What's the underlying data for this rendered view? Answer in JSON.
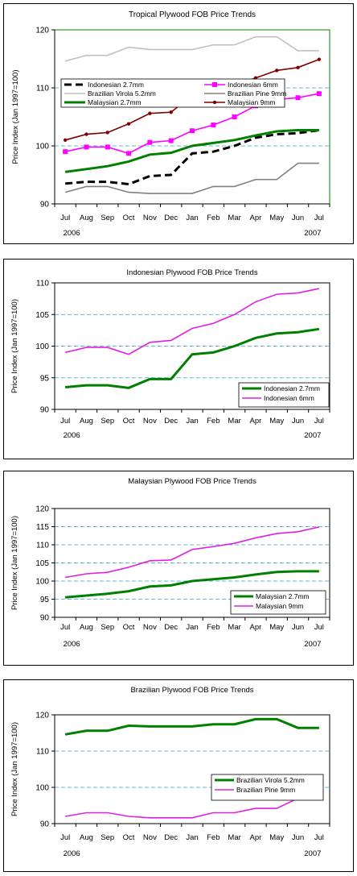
{
  "chart_data": [
    {
      "type": "line",
      "title": "Tropical Plywood FOB Price Trends",
      "xlabel": "",
      "ylabel": "Price Index (Jan 1997=100)",
      "categories": [
        "Jul",
        "Aug",
        "Sep",
        "Oct",
        "Nov",
        "Dec",
        "Jan",
        "Feb",
        "Mar",
        "Apr",
        "May",
        "Jun",
        "Jul"
      ],
      "year_labels": [
        "2006",
        "2007"
      ],
      "ylim": [
        90,
        120
      ],
      "yticks": [
        "90",
        "100",
        "110",
        "120"
      ],
      "grid": "dashed-horizontal",
      "plot_area_color": "#ffffff",
      "legend_position": "top",
      "series": [
        {
          "name": "Indonesian 2.7mm",
          "color": "#000000",
          "style": "dashed",
          "marker": "none",
          "values": [
            93.5,
            93.8,
            93.8,
            93.4,
            94.8,
            95.0,
            98.7,
            99.0,
            100.0,
            101.4,
            102.0,
            102.2,
            102.7
          ]
        },
        {
          "name": "Indonesian 6mm",
          "color": "#ff00ff",
          "style": "solid",
          "marker": "square",
          "values": [
            99.0,
            99.8,
            99.8,
            98.7,
            100.6,
            100.9,
            102.6,
            103.6,
            105.0,
            106.9,
            108.0,
            108.3,
            109.0
          ]
        },
        {
          "name": "Brazilian Virola 5.2mm",
          "color": "#c0c0c0",
          "style": "solid",
          "marker": "none",
          "values": [
            114.6,
            115.6,
            115.6,
            117.0,
            116.6,
            116.6,
            116.6,
            117.4,
            117.4,
            118.8,
            118.8,
            116.4,
            116.4
          ]
        },
        {
          "name": "Brazilian Pine 9mm",
          "color": "#808080",
          "style": "solid",
          "marker": "none",
          "values": [
            92.0,
            93.0,
            93.0,
            92.0,
            91.8,
            91.8,
            91.8,
            93.0,
            93.0,
            94.2,
            94.2,
            97.0,
            97.0
          ]
        },
        {
          "name": "Malaysian 2.7mm",
          "color": "#008000",
          "style": "solid",
          "marker": "none",
          "values": [
            95.5,
            96.0,
            96.5,
            97.3,
            98.5,
            98.8,
            100.0,
            100.5,
            101.0,
            101.8,
            102.5,
            102.7,
            102.7
          ]
        },
        {
          "name": "Malaysian 9mm",
          "color": "#800000",
          "style": "solid",
          "marker": "dot",
          "values": [
            101.0,
            102.0,
            102.3,
            103.8,
            105.6,
            105.8,
            108.7,
            109.5,
            110.4,
            111.7,
            113.0,
            113.5,
            114.9
          ]
        }
      ]
    },
    {
      "type": "line",
      "title": "Indonesian Plywood FOB Price Trends",
      "xlabel": "",
      "ylabel": "Price Index (Jan 1997=100)",
      "categories": [
        "Jul",
        "Aug",
        "Sep",
        "Oct",
        "Nov",
        "Dec",
        "Jan",
        "Feb",
        "Mar",
        "Apr",
        "May",
        "Jun",
        "Jul"
      ],
      "year_labels": [
        "2006",
        "2007"
      ],
      "ylim": [
        90,
        110
      ],
      "yticks": [
        "90",
        "95",
        "100",
        "105",
        "110"
      ],
      "grid": "dashed-horizontal",
      "plot_area_color": "#ffffff",
      "legend_position": "bottom-right",
      "series": [
        {
          "name": "Indonesian 2.7mm",
          "color": "#008000",
          "style": "solid",
          "marker": "none",
          "values": [
            93.5,
            93.8,
            93.8,
            93.4,
            94.8,
            94.8,
            98.7,
            99.0,
            100.0,
            101.3,
            102.0,
            102.2,
            102.7
          ]
        },
        {
          "name": "Indonesian 6mm",
          "color": "#e020e0",
          "style": "solid",
          "marker": "none",
          "values": [
            99.0,
            99.8,
            99.8,
            98.7,
            100.6,
            100.9,
            102.8,
            103.6,
            105.0,
            107.0,
            108.2,
            108.4,
            109.1
          ]
        }
      ]
    },
    {
      "type": "line",
      "title": "Malaysian Plywood FOB Price Trends",
      "xlabel": "",
      "ylabel": "Price Index (Jan 1997=100)",
      "categories": [
        "Jul",
        "Aug",
        "Sep",
        "Oct",
        "Nov",
        "Dec",
        "Jan",
        "Feb",
        "Mar",
        "Apr",
        "May",
        "Jun",
        "Jul"
      ],
      "year_labels": [
        "2006",
        "2007"
      ],
      "ylim": [
        90,
        120
      ],
      "yticks": [
        "90",
        "95",
        "100",
        "105",
        "110",
        "115",
        "120"
      ],
      "grid": "dashed-horizontal",
      "plot_area_color": "#ffffff",
      "legend_position": "bottom-right",
      "series": [
        {
          "name": "Malaysian 2.7mm",
          "color": "#008000",
          "style": "solid",
          "marker": "none",
          "values": [
            95.5,
            96.0,
            96.5,
            97.2,
            98.5,
            98.8,
            100.0,
            100.5,
            101.0,
            101.8,
            102.5,
            102.7,
            102.7
          ]
        },
        {
          "name": "Malaysian 9mm",
          "color": "#e020e0",
          "style": "solid",
          "marker": "none",
          "values": [
            101.0,
            102.0,
            102.4,
            103.8,
            105.6,
            105.8,
            108.7,
            109.5,
            110.4,
            111.9,
            113.1,
            113.6,
            114.9
          ]
        }
      ]
    },
    {
      "type": "line",
      "title": "Brazilian Plywood FOB Price Trends",
      "xlabel": "",
      "ylabel": "Price Index (Jan 1997=100)",
      "categories": [
        "Jul",
        "Aug",
        "Sep",
        "Oct",
        "Nov",
        "Dec",
        "Jan",
        "Feb",
        "Mar",
        "Apr",
        "May",
        "Jun",
        "Jul"
      ],
      "year_labels": [
        "2006",
        "2007"
      ],
      "ylim": [
        90,
        120
      ],
      "yticks": [
        "90",
        "100",
        "110",
        "120"
      ],
      "grid": "dashed-horizontal",
      "plot_area_color": "#ffffff",
      "legend_position": "bottom-right",
      "series": [
        {
          "name": "Brazilian Virola 5.2mm",
          "color": "#008000",
          "style": "solid",
          "marker": "none",
          "values": [
            114.6,
            115.6,
            115.6,
            117.0,
            116.8,
            116.8,
            116.8,
            117.4,
            117.4,
            118.8,
            118.8,
            116.4,
            116.4
          ]
        },
        {
          "name": "Brazilian Pine 9mm",
          "color": "#e020e0",
          "style": "solid",
          "marker": "none",
          "values": [
            92.0,
            93.0,
            93.0,
            92.0,
            91.6,
            91.6,
            91.6,
            93.0,
            93.0,
            94.2,
            94.2,
            97.0,
            97.0
          ]
        }
      ]
    }
  ]
}
